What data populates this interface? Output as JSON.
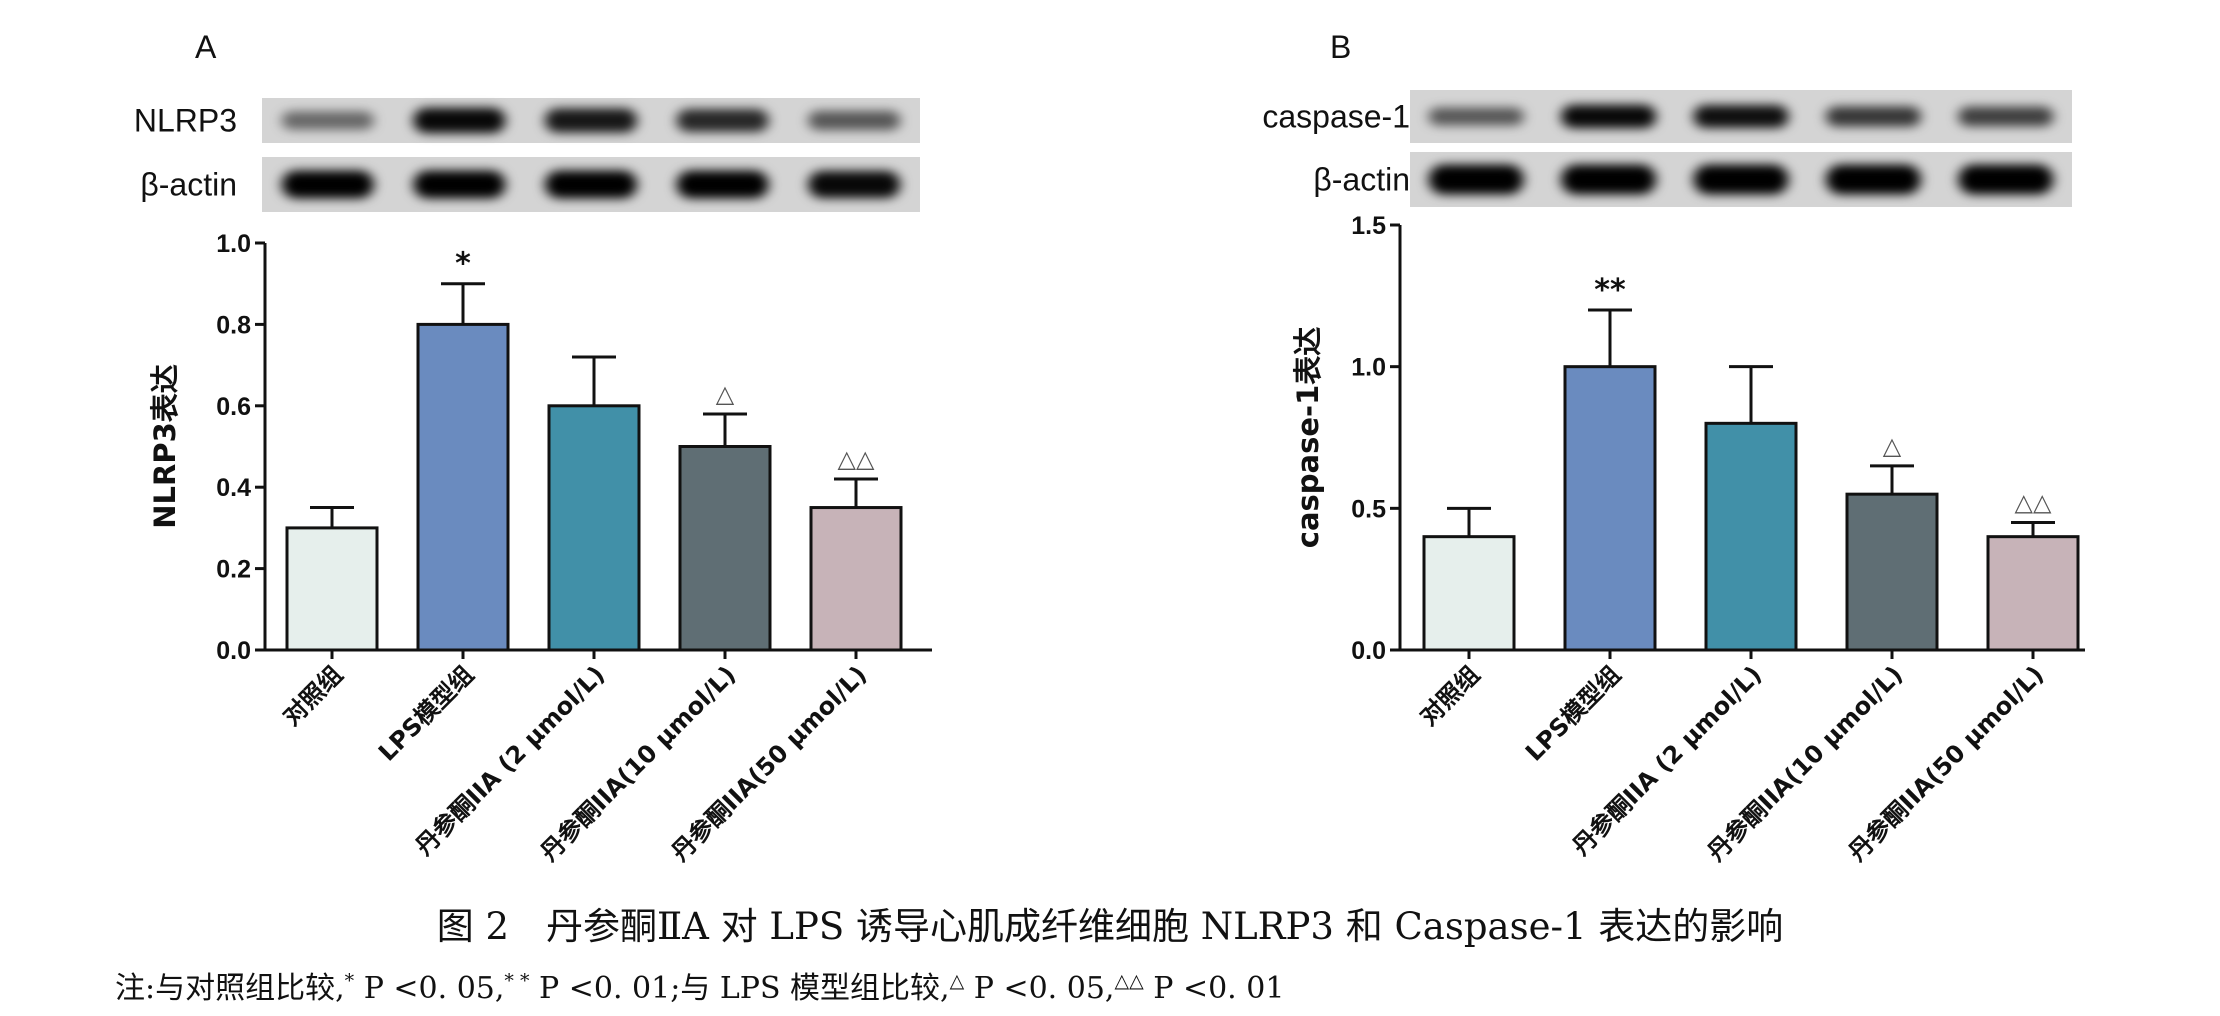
{
  "chart_data": [
    {
      "type": "bar",
      "panel_label": "A",
      "blot_labels": [
        "NLRP3",
        "β-actin"
      ],
      "blot_intensity": [
        [
          0.35,
          0.95,
          0.85,
          0.75,
          0.45
        ],
        [
          1.0,
          1.0,
          1.0,
          1.0,
          0.95
        ]
      ],
      "categories": [
        "对照组",
        "LPS模型组",
        "丹参酮IIA (2 μmol/L)",
        "丹参酮IIA(10 μmol/L)",
        "丹参酮IIA(50 μmol/L)"
      ],
      "values": [
        0.3,
        0.8,
        0.6,
        0.5,
        0.35
      ],
      "errors": [
        0.05,
        0.1,
        0.12,
        0.08,
        0.07
      ],
      "annotations": [
        "",
        "*",
        "",
        "△",
        "△△"
      ],
      "ylabel": "NLRP3表达",
      "ylim": [
        0,
        1.0
      ],
      "yticks": [
        "0.0",
        "0.2",
        "0.4",
        "0.6",
        "0.8",
        "1.0"
      ],
      "colors": [
        "#e6efec",
        "#6a8bbf",
        "#4190a8",
        "#5f6e74",
        "#c7b3b8"
      ]
    },
    {
      "type": "bar",
      "panel_label": "B",
      "blot_labels": [
        "caspase-1",
        "β-actin"
      ],
      "blot_intensity": [
        [
          0.45,
          0.95,
          0.9,
          0.65,
          0.6
        ],
        [
          1.0,
          1.0,
          1.0,
          1.0,
          1.0
        ]
      ],
      "categories": [
        "对照组",
        "LPS模型组",
        "丹参酮IIA (2 μmol/L)",
        "丹参酮IIA(10 μmol/L)",
        "丹参酮IIA(50 μmol/L)"
      ],
      "values": [
        0.4,
        1.0,
        0.8,
        0.55,
        0.4
      ],
      "errors": [
        0.1,
        0.2,
        0.2,
        0.1,
        0.05
      ],
      "annotations": [
        "",
        "**",
        "",
        "△",
        "△△"
      ],
      "ylabel": "caspase-1表达",
      "ylim": [
        0,
        1.5
      ],
      "yticks": [
        "0.0",
        "0.5",
        "1.0",
        "1.5"
      ],
      "colors": [
        "#e6efec",
        "#6a8bbf",
        "#4190a8",
        "#5f6e74",
        "#c7b3b8"
      ]
    }
  ],
  "caption": "图 2　丹参酮ⅡA 对 LPS 诱导心肌成纤维细胞 NLRP3 和 Caspase-1 表达的影响",
  "note": {
    "prefix": "注:与对照组比较,",
    "mark1": "*",
    "text1": " P <0. 05,",
    "mark2": "* *",
    "text2": " P <0. 01;与 LPS 模型组比较,",
    "mark3": "△",
    "text3": " P <0. 05,",
    "mark4": "△△",
    "text4": " P <0. 01"
  }
}
